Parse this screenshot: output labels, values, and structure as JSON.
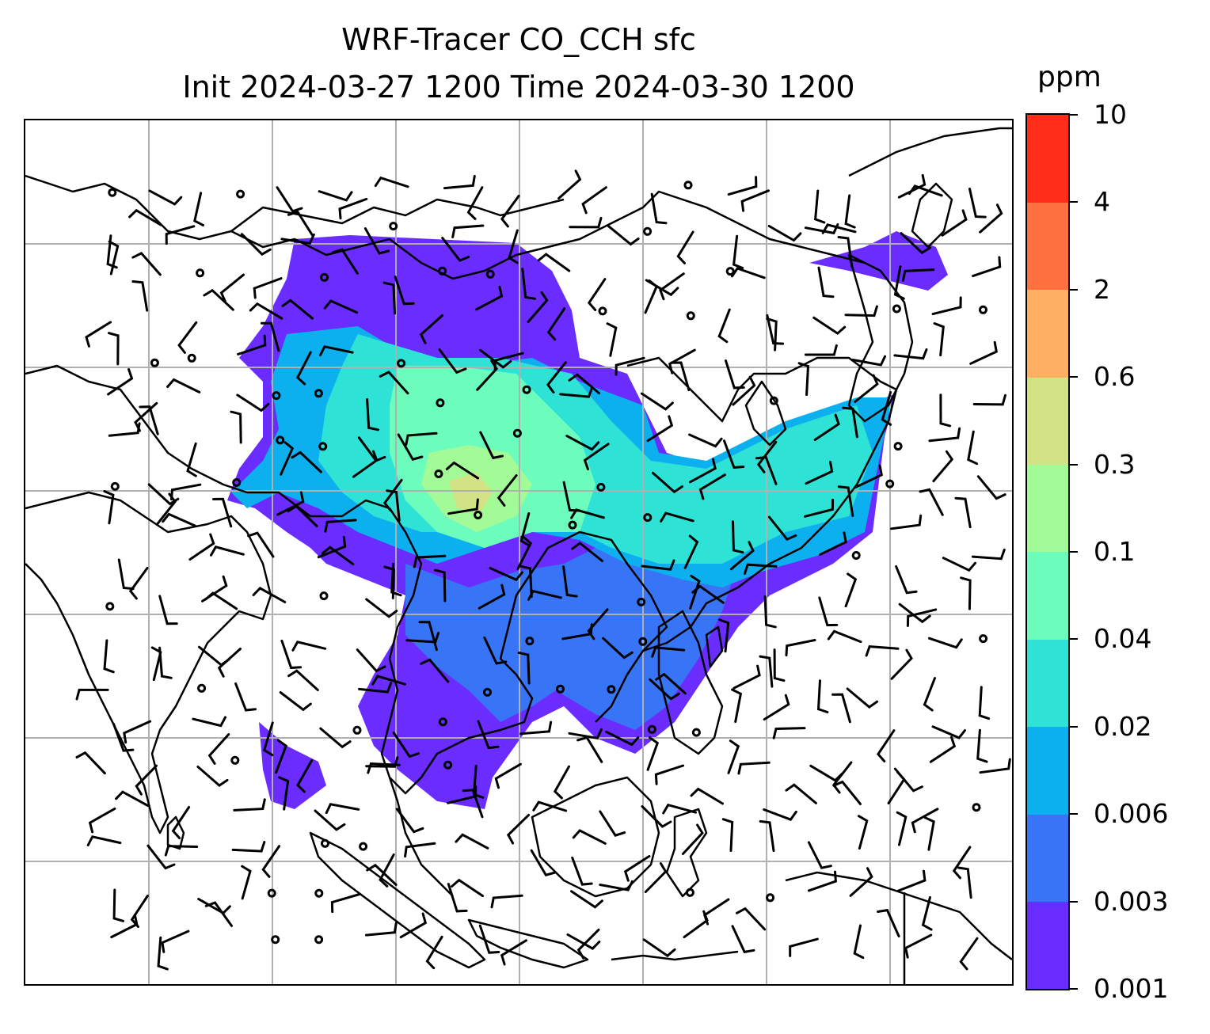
{
  "title": {
    "line1": "WRF-Tracer CO_CCH sfc",
    "line2": "Init 2024-03-27 1200 Time 2024-03-30 1200"
  },
  "colorbar": {
    "unit": "ppm",
    "levels": [
      "0.001",
      "0.003",
      "0.006",
      "0.02",
      "0.04",
      "0.1",
      "0.3",
      "0.6",
      "2",
      "4",
      "10"
    ],
    "colors": [
      "#6a2cff",
      "#3875f6",
      "#0db0ee",
      "#2ee2d6",
      "#6cfcbc",
      "#a2fb97",
      "#d2e284",
      "#ffb060",
      "#ff7040",
      "#ff2e1a"
    ]
  },
  "map": {
    "gridlines": true,
    "coastline_color": "#000000",
    "grid_color": "#b0b0b0",
    "overlay": "wind barbs"
  }
}
